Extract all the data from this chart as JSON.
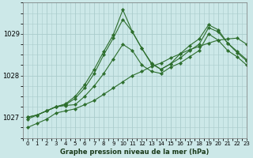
{
  "title": "Graphe pression niveau de la mer (hPa)",
  "bg_color": "#cce8e8",
  "grid_color": "#aacccc",
  "line_color": "#2d6e2d",
  "xlim": [
    -0.5,
    23
  ],
  "ylim": [
    1026.5,
    1029.75
  ],
  "yticks": [
    1027,
    1028,
    1029
  ],
  "xticks": [
    0,
    1,
    2,
    3,
    4,
    5,
    6,
    7,
    8,
    9,
    10,
    11,
    12,
    13,
    14,
    15,
    16,
    17,
    18,
    19,
    20,
    21,
    22,
    23
  ],
  "series": [
    [
      1026.75,
      1026.85,
      1026.95,
      1027.1,
      1027.15,
      1027.2,
      1027.3,
      1027.4,
      1027.55,
      1027.7,
      1027.85,
      1028.0,
      1028.1,
      1028.22,
      1028.3,
      1028.42,
      1028.52,
      1028.62,
      1028.7,
      1028.78,
      1028.85,
      1028.88,
      1028.9,
      1028.75
    ],
    [
      1026.95,
      1027.05,
      1027.15,
      1027.25,
      1027.28,
      1027.3,
      1027.5,
      1027.75,
      1028.05,
      1028.4,
      1028.75,
      1028.6,
      1028.25,
      1028.1,
      1028.05,
      1028.2,
      1028.3,
      1028.45,
      1028.6,
      1029.0,
      1028.85,
      1028.6,
      1028.45,
      1028.25
    ],
    [
      1027.0,
      1027.05,
      1027.15,
      1027.25,
      1027.3,
      1027.45,
      1027.7,
      1028.05,
      1028.5,
      1028.9,
      1029.35,
      1029.05,
      1028.65,
      1028.3,
      1028.15,
      1028.28,
      1028.42,
      1028.6,
      1028.75,
      1029.15,
      1029.05,
      1028.78,
      1028.58,
      1028.38
    ],
    [
      1027.0,
      1027.05,
      1027.15,
      1027.25,
      1027.32,
      1027.5,
      1027.78,
      1028.15,
      1028.58,
      1028.98,
      1029.58,
      1029.05,
      1028.65,
      1028.28,
      1028.15,
      1028.28,
      1028.52,
      1028.72,
      1028.88,
      1029.22,
      1029.1,
      1028.78,
      1028.55,
      1028.35
    ]
  ]
}
